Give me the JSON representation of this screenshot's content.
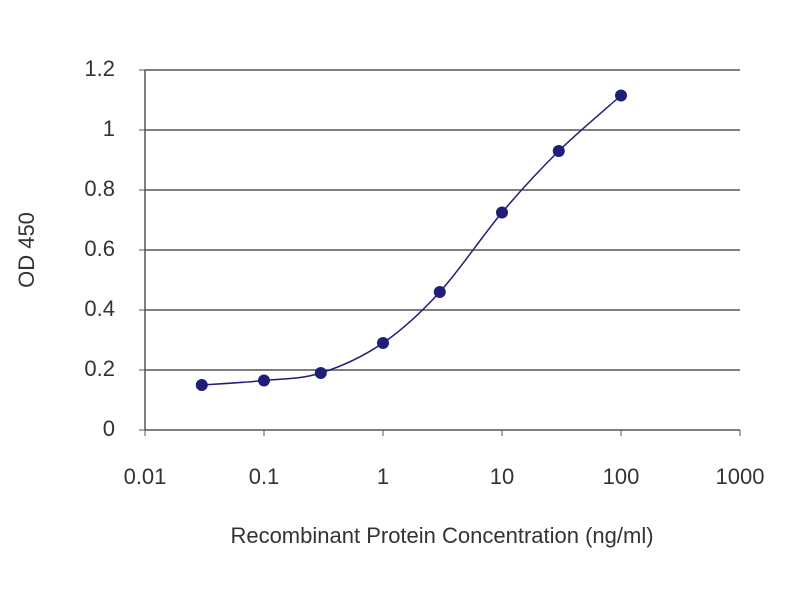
{
  "chart_data": {
    "type": "line",
    "x_label": "Recombinant Protein Concentration (ng/ml)",
    "y_label": "OD 450",
    "x": [
      0.03,
      0.1,
      0.3,
      1,
      3,
      10,
      30,
      100
    ],
    "values": [
      0.15,
      0.165,
      0.19,
      0.29,
      0.46,
      0.725,
      0.93,
      1.115
    ],
    "color": "#1f1f7a",
    "xlim": [
      0.01,
      1000
    ],
    "xticks": [
      0.01,
      0.1,
      1,
      10,
      100,
      1000
    ],
    "xscale": "log",
    "ylim": [
      0,
      1.2
    ],
    "yticks": [
      0,
      0.2,
      0.4,
      0.6,
      0.8,
      1,
      1.2
    ],
    "grid": true
  }
}
